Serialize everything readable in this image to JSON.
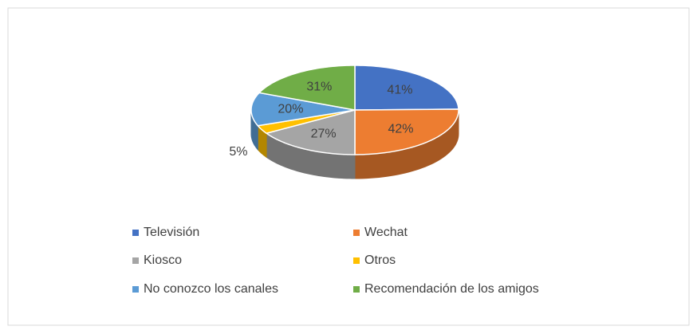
{
  "chart_data": {
    "type": "pie3d",
    "categories": [
      "Televisión",
      "Wechat",
      "Kiosco",
      "Otros",
      "No conozco los canales",
      "Recomendación de los amigos"
    ],
    "values": [
      41,
      42,
      27,
      5,
      20,
      31
    ],
    "value_labels": [
      "41%",
      "42%",
      "27%",
      "5%",
      "20%",
      "31%"
    ],
    "colors": [
      "#4472c4",
      "#ed7d31",
      "#a5a5a5",
      "#ffc000",
      "#5b9bd5",
      "#70ad47"
    ],
    "legend": "bottom"
  }
}
